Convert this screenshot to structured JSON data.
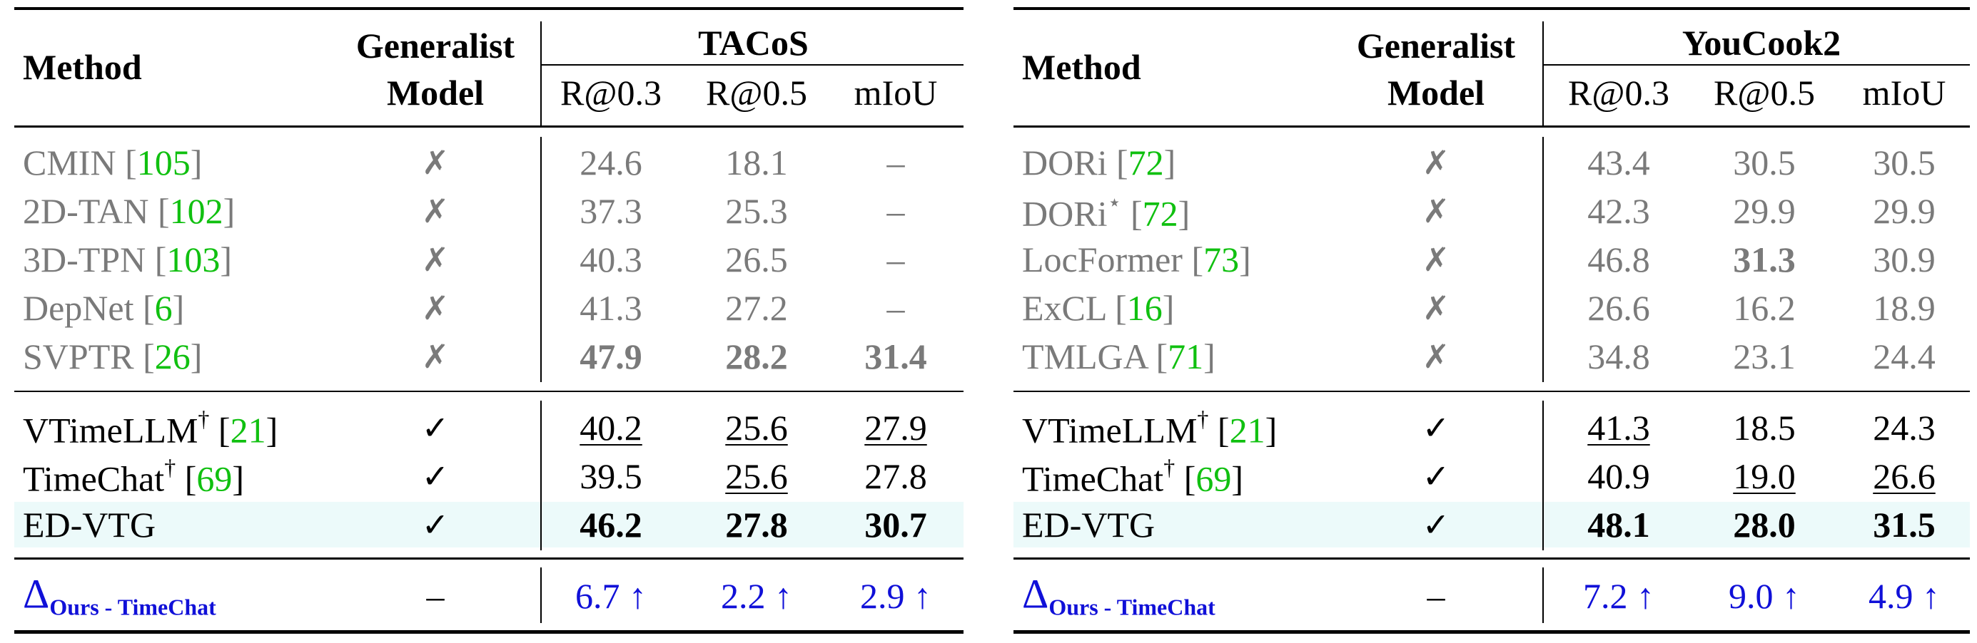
{
  "tables": [
    {
      "id": "tacos",
      "dataset": "TACoS",
      "method_header": "Method",
      "generalist_header": [
        "Generalist",
        "Model"
      ],
      "metrics": [
        "R@0.3",
        "R@0.5",
        "mIoU"
      ],
      "groups": [
        {
          "rows": [
            {
              "name": "CMIN",
              "sup": "",
              "ref": "105",
              "generalist": "✗",
              "values": [
                "24.6",
                "18.1",
                "–"
              ],
              "bold": [
                false,
                false,
                false
              ],
              "underline": [
                false,
                false,
                false
              ]
            },
            {
              "name": "2D-TAN",
              "sup": "",
              "ref": "102",
              "generalist": "✗",
              "values": [
                "37.3",
                "25.3",
                "–"
              ],
              "bold": [
                false,
                false,
                false
              ],
              "underline": [
                false,
                false,
                false
              ]
            },
            {
              "name": "3D-TPN",
              "sup": "",
              "ref": "103",
              "generalist": "✗",
              "values": [
                "40.3",
                "26.5",
                "–"
              ],
              "bold": [
                false,
                false,
                false
              ],
              "underline": [
                false,
                false,
                false
              ]
            },
            {
              "name": "DepNet",
              "sup": "",
              "ref": "6",
              "generalist": "✗",
              "values": [
                "41.3",
                "27.2",
                "–"
              ],
              "bold": [
                false,
                false,
                false
              ],
              "underline": [
                false,
                false,
                false
              ]
            },
            {
              "name": "SVPTR",
              "sup": "",
              "ref": "26",
              "generalist": "✗",
              "values": [
                "47.9",
                "28.2",
                "31.4"
              ],
              "bold": [
                true,
                true,
                true
              ],
              "underline": [
                false,
                false,
                false
              ]
            }
          ]
        },
        {
          "rows": [
            {
              "name": "VTimeLLM",
              "sup": "†",
              "ref": "21",
              "generalist": "✓",
              "values": [
                "40.2",
                "25.6",
                "27.9"
              ],
              "bold": [
                false,
                false,
                false
              ],
              "underline": [
                true,
                true,
                true
              ]
            },
            {
              "name": "TimeChat",
              "sup": "†",
              "ref": "69",
              "generalist": "✓",
              "values": [
                "39.5",
                "25.6",
                "27.8"
              ],
              "bold": [
                false,
                false,
                false
              ],
              "underline": [
                false,
                true,
                false
              ]
            },
            {
              "name": "ED-VTG",
              "sup": "",
              "ref": "",
              "generalist": "✓",
              "values": [
                "46.2",
                "27.8",
                "30.7"
              ],
              "bold": [
                true,
                true,
                true
              ],
              "underline": [
                false,
                false,
                false
              ],
              "highlight": true
            }
          ]
        }
      ],
      "delta_row": {
        "symbol": "Δ",
        "subscript": "Ours - TimeChat",
        "generalist": "–",
        "values": [
          "6.7 ↑",
          "2.2 ↑",
          "2.9 ↑"
        ]
      }
    },
    {
      "id": "youcook2",
      "dataset": "YouCook2",
      "method_header": "Method",
      "generalist_header": [
        "Generalist",
        "Model"
      ],
      "metrics": [
        "R@0.3",
        "R@0.5",
        "mIoU"
      ],
      "groups": [
        {
          "rows": [
            {
              "name": "DORi",
              "sup": "",
              "ref": "72",
              "generalist": "✗",
              "values": [
                "43.4",
                "30.5",
                "30.5"
              ],
              "bold": [
                false,
                false,
                false
              ],
              "underline": [
                false,
                false,
                false
              ]
            },
            {
              "name": "DORi",
              "sup": "⋆",
              "ref": "72",
              "generalist": "✗",
              "values": [
                "42.3",
                "29.9",
                "29.9"
              ],
              "bold": [
                false,
                false,
                false
              ],
              "underline": [
                false,
                false,
                false
              ]
            },
            {
              "name": "LocFormer",
              "sup": "",
              "ref": "73",
              "generalist": "✗",
              "values": [
                "46.8",
                "31.3",
                "30.9"
              ],
              "bold": [
                false,
                true,
                false
              ],
              "underline": [
                false,
                false,
                false
              ]
            },
            {
              "name": "ExCL",
              "sup": "",
              "ref": "16",
              "generalist": "✗",
              "values": [
                "26.6",
                "16.2",
                "18.9"
              ],
              "bold": [
                false,
                false,
                false
              ],
              "underline": [
                false,
                false,
                false
              ]
            },
            {
              "name": "TMLGA",
              "sup": "",
              "ref": "71",
              "generalist": "✗",
              "values": [
                "34.8",
                "23.1",
                "24.4"
              ],
              "bold": [
                false,
                false,
                false
              ],
              "underline": [
                false,
                false,
                false
              ]
            }
          ]
        },
        {
          "rows": [
            {
              "name": "VTimeLLM",
              "sup": "†",
              "ref": "21",
              "generalist": "✓",
              "values": [
                "41.3",
                "18.5",
                "24.3"
              ],
              "bold": [
                false,
                false,
                false
              ],
              "underline": [
                true,
                false,
                false
              ]
            },
            {
              "name": "TimeChat",
              "sup": "†",
              "ref": "69",
              "generalist": "✓",
              "values": [
                "40.9",
                "19.0",
                "26.6"
              ],
              "bold": [
                false,
                false,
                false
              ],
              "underline": [
                false,
                true,
                true
              ]
            },
            {
              "name": "ED-VTG",
              "sup": "",
              "ref": "",
              "generalist": "✓",
              "values": [
                "48.1",
                "28.0",
                "31.5"
              ],
              "bold": [
                true,
                true,
                true
              ],
              "underline": [
                false,
                false,
                false
              ],
              "highlight": true
            }
          ]
        }
      ],
      "delta_row": {
        "symbol": "Δ",
        "subscript": "Ours - TimeChat",
        "generalist": "–",
        "values": [
          "7.2 ↑",
          "9.0 ↑",
          "4.9 ↑"
        ]
      }
    }
  ]
}
